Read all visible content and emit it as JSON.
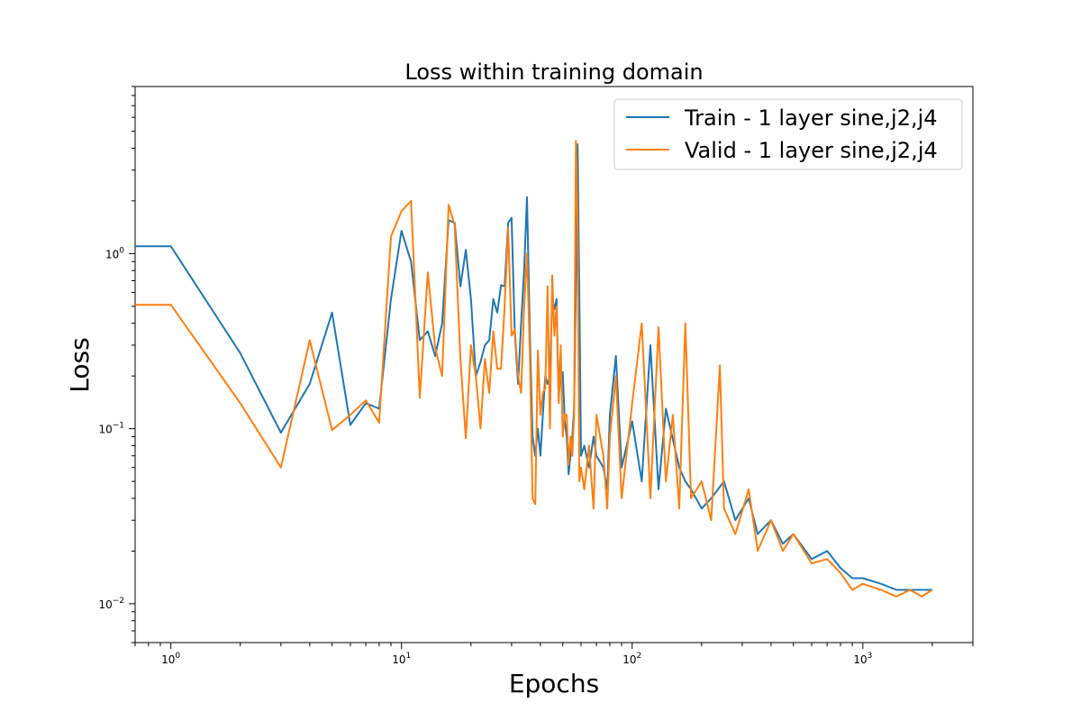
{
  "chart_data": {
    "type": "line",
    "title": "Loss within training domain",
    "xlabel": "Epochs",
    "ylabel": "Loss",
    "x_scale": "log",
    "y_scale": "log",
    "xlim": [
      0.7,
      3000
    ],
    "ylim": [
      0.006,
      9
    ],
    "x_ticks": [
      1,
      10,
      100,
      1000
    ],
    "x_tick_labels": [
      {
        "base": "10",
        "exp": "0"
      },
      {
        "base": "10",
        "exp": "1"
      },
      {
        "base": "10",
        "exp": "2"
      },
      {
        "base": "10",
        "exp": "3"
      }
    ],
    "y_ticks": [
      0.01,
      0.1,
      1
    ],
    "y_tick_labels": [
      {
        "base": "10",
        "exp": "−2"
      },
      {
        "base": "10",
        "exp": "−1"
      },
      {
        "base": "10",
        "exp": "0"
      }
    ],
    "grid": false,
    "legend_position": "top-right",
    "series": [
      {
        "name": "Train - 1 layer sine,j2,j4",
        "color": "#1f77b4",
        "points": [
          [
            0.7,
            1.1
          ],
          [
            1,
            1.1
          ],
          [
            2,
            0.27
          ],
          [
            3,
            0.095
          ],
          [
            4,
            0.18
          ],
          [
            5,
            0.46
          ],
          [
            6,
            0.105
          ],
          [
            7,
            0.14
          ],
          [
            8,
            0.13
          ],
          [
            9,
            0.55
          ],
          [
            10,
            1.35
          ],
          [
            11,
            0.9
          ],
          [
            12,
            0.32
          ],
          [
            13,
            0.36
          ],
          [
            14,
            0.26
          ],
          [
            15,
            0.4
          ],
          [
            16,
            1.55
          ],
          [
            17,
            1.5
          ],
          [
            18,
            0.65
          ],
          [
            19,
            1.05
          ],
          [
            20,
            0.55
          ],
          [
            21,
            0.2
          ],
          [
            22,
            0.24
          ],
          [
            23,
            0.3
          ],
          [
            24,
            0.32
          ],
          [
            25,
            0.55
          ],
          [
            26,
            0.46
          ],
          [
            27,
            0.66
          ],
          [
            28,
            0.65
          ],
          [
            29,
            1.5
          ],
          [
            30,
            1.6
          ],
          [
            31,
            0.35
          ],
          [
            32,
            0.18
          ],
          [
            33,
            0.4
          ],
          [
            34,
            0.8
          ],
          [
            35,
            2.1
          ],
          [
            36,
            0.35
          ],
          [
            37,
            0.09
          ],
          [
            38,
            0.07
          ],
          [
            39,
            0.1
          ],
          [
            40,
            0.07
          ],
          [
            41,
            0.12
          ],
          [
            42,
            0.2
          ],
          [
            43,
            0.18
          ],
          [
            44,
            0.2
          ],
          [
            45,
            0.56
          ],
          [
            46,
            0.48
          ],
          [
            47,
            0.55
          ],
          [
            48,
            0.15
          ],
          [
            49,
            0.21
          ],
          [
            50,
            0.21
          ],
          [
            51,
            0.11
          ],
          [
            52,
            0.09
          ],
          [
            53,
            0.055
          ],
          [
            54,
            0.07
          ],
          [
            55,
            0.09
          ],
          [
            56,
            0.13
          ],
          [
            57,
            0.65
          ],
          [
            58,
            4.2
          ],
          [
            59,
            0.6
          ],
          [
            60,
            0.07
          ],
          [
            62,
            0.08
          ],
          [
            65,
            0.06
          ],
          [
            68,
            0.09
          ],
          [
            70,
            0.07
          ],
          [
            75,
            0.06
          ],
          [
            78,
            0.045
          ],
          [
            80,
            0.12
          ],
          [
            85,
            0.26
          ],
          [
            90,
            0.06
          ],
          [
            100,
            0.11
          ],
          [
            110,
            0.05
          ],
          [
            120,
            0.3
          ],
          [
            130,
            0.045
          ],
          [
            140,
            0.13
          ],
          [
            160,
            0.06
          ],
          [
            170,
            0.05
          ],
          [
            180,
            0.045
          ],
          [
            200,
            0.035
          ],
          [
            220,
            0.04
          ],
          [
            250,
            0.05
          ],
          [
            280,
            0.03
          ],
          [
            320,
            0.04
          ],
          [
            350,
            0.025
          ],
          [
            400,
            0.03
          ],
          [
            450,
            0.022
          ],
          [
            500,
            0.025
          ],
          [
            600,
            0.018
          ],
          [
            700,
            0.02
          ],
          [
            800,
            0.016
          ],
          [
            900,
            0.014
          ],
          [
            1000,
            0.014
          ],
          [
            1200,
            0.013
          ],
          [
            1400,
            0.012
          ],
          [
            1600,
            0.012
          ],
          [
            1800,
            0.012
          ],
          [
            2000,
            0.012
          ]
        ]
      },
      {
        "name": "Valid - 1 layer sine,j2,j4",
        "color": "#ff7f0e",
        "points": [
          [
            0.7,
            0.51
          ],
          [
            1,
            0.51
          ],
          [
            2,
            0.14
          ],
          [
            3,
            0.06
          ],
          [
            4,
            0.32
          ],
          [
            5,
            0.098
          ],
          [
            6,
            0.12
          ],
          [
            7,
            0.145
          ],
          [
            8,
            0.108
          ],
          [
            9,
            1.25
          ],
          [
            10,
            1.75
          ],
          [
            11,
            2.0
          ],
          [
            12,
            0.15
          ],
          [
            13,
            0.78
          ],
          [
            14,
            0.29
          ],
          [
            15,
            0.2
          ],
          [
            16,
            1.9
          ],
          [
            17,
            1.45
          ],
          [
            18,
            0.25
          ],
          [
            19,
            0.088
          ],
          [
            20,
            0.3
          ],
          [
            21,
            0.2
          ],
          [
            22,
            0.1
          ],
          [
            23,
            0.25
          ],
          [
            24,
            0.16
          ],
          [
            25,
            0.36
          ],
          [
            26,
            0.22
          ],
          [
            27,
            0.22
          ],
          [
            28,
            0.5
          ],
          [
            29,
            1.4
          ],
          [
            30,
            0.34
          ],
          [
            31,
            0.37
          ],
          [
            32,
            0.2
          ],
          [
            33,
            0.16
          ],
          [
            34,
            0.5
          ],
          [
            35,
            1.0
          ],
          [
            36,
            0.27
          ],
          [
            37,
            0.04
          ],
          [
            38,
            0.037
          ],
          [
            39,
            0.28
          ],
          [
            40,
            0.12
          ],
          [
            41,
            0.16
          ],
          [
            42,
            0.17
          ],
          [
            43,
            0.65
          ],
          [
            44,
            0.1
          ],
          [
            45,
            0.75
          ],
          [
            46,
            0.34
          ],
          [
            47,
            0.5
          ],
          [
            48,
            0.14
          ],
          [
            49,
            0.3
          ],
          [
            50,
            0.09
          ],
          [
            51,
            0.12
          ],
          [
            52,
            0.12
          ],
          [
            53,
            0.062
          ],
          [
            54,
            0.09
          ],
          [
            55,
            0.07
          ],
          [
            56,
            0.12
          ],
          [
            57,
            4.4
          ],
          [
            58,
            1.5
          ],
          [
            59,
            0.05
          ],
          [
            60,
            0.06
          ],
          [
            62,
            0.045
          ],
          [
            65,
            0.08
          ],
          [
            68,
            0.035
          ],
          [
            70,
            0.12
          ],
          [
            75,
            0.07
          ],
          [
            78,
            0.035
          ],
          [
            80,
            0.09
          ],
          [
            85,
            0.2
          ],
          [
            90,
            0.04
          ],
          [
            100,
            0.14
          ],
          [
            110,
            0.4
          ],
          [
            120,
            0.04
          ],
          [
            130,
            0.38
          ],
          [
            140,
            0.05
          ],
          [
            150,
            0.12
          ],
          [
            160,
            0.035
          ],
          [
            170,
            0.4
          ],
          [
            180,
            0.04
          ],
          [
            200,
            0.05
          ],
          [
            220,
            0.03
          ],
          [
            240,
            0.23
          ],
          [
            250,
            0.035
          ],
          [
            280,
            0.025
          ],
          [
            320,
            0.045
          ],
          [
            350,
            0.02
          ],
          [
            400,
            0.03
          ],
          [
            450,
            0.02
          ],
          [
            500,
            0.025
          ],
          [
            600,
            0.017
          ],
          [
            700,
            0.018
          ],
          [
            800,
            0.015
          ],
          [
            900,
            0.012
          ],
          [
            1000,
            0.013
          ],
          [
            1200,
            0.012
          ],
          [
            1400,
            0.011
          ],
          [
            1600,
            0.012
          ],
          [
            1800,
            0.011
          ],
          [
            2000,
            0.012
          ]
        ]
      }
    ]
  }
}
